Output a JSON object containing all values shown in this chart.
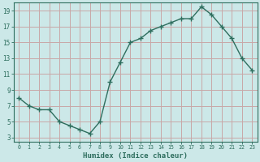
{
  "x": [
    0,
    1,
    2,
    3,
    4,
    5,
    6,
    7,
    8,
    9,
    10,
    11,
    12,
    13,
    14,
    15,
    16,
    17,
    18,
    19,
    20,
    21,
    22,
    23
  ],
  "y": [
    8.0,
    7.0,
    6.5,
    6.5,
    5.0,
    4.5,
    4.0,
    3.5,
    5.0,
    10.0,
    12.5,
    15.0,
    15.5,
    16.5,
    17.0,
    17.5,
    18.0,
    18.0,
    19.5,
    18.5,
    17.0,
    15.5,
    13.0,
    11.5
  ],
  "line_color": "#2e6e5e",
  "marker_color": "#2e6e5e",
  "bg_color": "#cce8e8",
  "grid_color": "#c8a8a8",
  "tick_color": "#2e6e5e",
  "xlabel": "Humidex (Indice chaleur)",
  "xlim": [
    -0.5,
    23.5
  ],
  "ylim": [
    2.5,
    20.0
  ],
  "yticks": [
    3,
    5,
    7,
    9,
    11,
    13,
    15,
    17,
    19
  ],
  "xticks": [
    0,
    1,
    2,
    3,
    4,
    5,
    6,
    7,
    8,
    9,
    10,
    11,
    12,
    13,
    14,
    15,
    16,
    17,
    18,
    19,
    20,
    21,
    22,
    23
  ],
  "xtick_labels": [
    "0",
    "1",
    "2",
    "3",
    "4",
    "5",
    "6",
    "7",
    "8",
    "9",
    "10",
    "11",
    "12",
    "13",
    "14",
    "15",
    "16",
    "17",
    "18",
    "19",
    "20",
    "21",
    "22",
    "23"
  ]
}
